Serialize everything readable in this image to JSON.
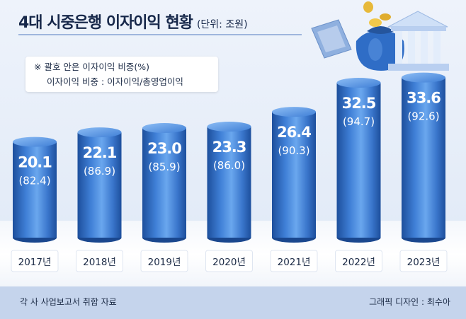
{
  "title": "4대 시중은행 이자이익 현황",
  "unit": "(단위: 조원)",
  "note": {
    "line1": "※ 괄호 안은 이자이익 비중(%)",
    "line2": "이자이익 비중 : 이자이익/총영업이익"
  },
  "source": "각 사 사업보고서 취합 자료",
  "credit": "그래픽 디자인 : 최수아",
  "colors": {
    "bar_dark": "#1d4f9c",
    "bar_mid": "#3f7fd6",
    "bar_light": "#6aa7ee",
    "label_bg": "#ffffff"
  },
  "chart_data": {
    "type": "bar",
    "categories": [
      "2017년",
      "2018년",
      "2019년",
      "2020년",
      "2021년",
      "2022년",
      "2023년"
    ],
    "series": [
      {
        "values": [
          20.1,
          22.1,
          23.0,
          23.3,
          26.4,
          32.5,
          33.6
        ]
      },
      {
        "values": [
          82.4,
          86.9,
          85.9,
          86.0,
          90.3,
          94.7,
          92.6
        ]
      }
    ],
    "value_labels": [
      "20.1",
      "22.1",
      "23.0",
      "23.3",
      "26.4",
      "32.5",
      "33.6"
    ],
    "ratio_labels": [
      "(82.4)",
      "(86.9)",
      "(85.9)",
      "(86.0)",
      "(90.3)",
      "(94.7)",
      "(92.6)"
    ],
    "ylim": [
      0,
      38
    ],
    "grid": false,
    "legend": "none"
  }
}
